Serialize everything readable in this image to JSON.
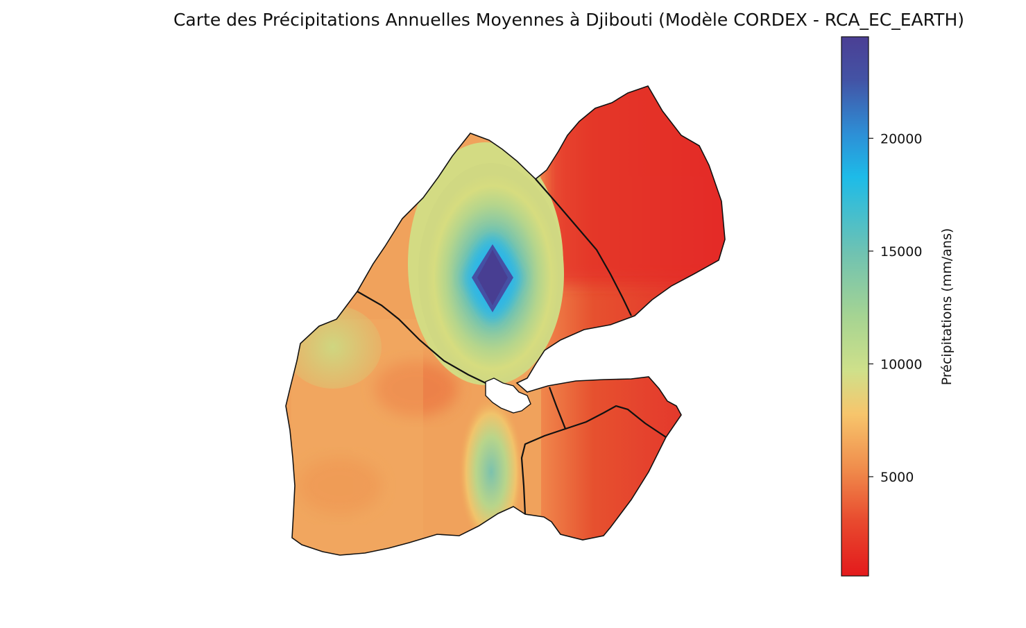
{
  "title": "Carte des Précipitations Annuelles Moyennes à Djibouti (Modèle CORDEX - RCA_EC_EARTH)",
  "colorbar": {
    "label": "Précipitations (mm/ans)",
    "range": [
      600,
      24500
    ],
    "ticks": [
      {
        "value": 5000,
        "label": "5000"
      },
      {
        "value": 10000,
        "label": "10000"
      },
      {
        "value": 15000,
        "label": "15000"
      },
      {
        "value": 20000,
        "label": "20000"
      }
    ],
    "colormap": [
      "#e31a1c",
      "#e8492e",
      "#f08d4c",
      "#f7c56c",
      "#cfe08a",
      "#a6d492",
      "#6fc2b2",
      "#40b5dc",
      "#1aa6e6",
      "#3a78c2",
      "#4b3f94"
    ]
  },
  "map": {
    "region": "Djibouti",
    "high_color": "#483e92",
    "peak_value_mm": 24000
  }
}
